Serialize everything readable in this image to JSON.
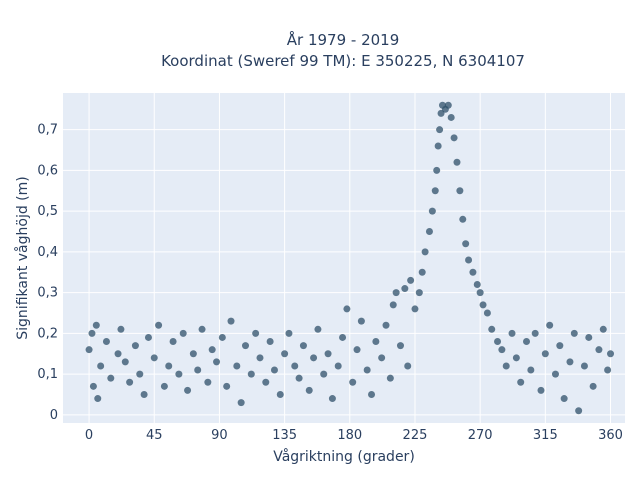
{
  "chart_data": {
    "type": "scatter",
    "title": "År 1979 - 2019",
    "subtitle": "Koordinat (Sweref 99 TM): E 350225, N 6304107",
    "xlabel": "Vågriktning (grader)",
    "ylabel": "Signifikant våghöjd (m)",
    "xlim": [
      -18,
      370
    ],
    "ylim": [
      -0.02,
      0.79
    ],
    "x_ticks": [
      0,
      45,
      90,
      135,
      180,
      225,
      270,
      315,
      360
    ],
    "y_ticks": [
      0,
      0.1,
      0.2,
      0.3,
      0.4,
      0.5,
      0.6,
      0.7
    ],
    "y_tick_labels": [
      "0",
      "0,1",
      "0,2",
      "0,3",
      "0,4",
      "0,5",
      "0,6",
      "0,7"
    ],
    "grid": true,
    "legend": "none",
    "colors": {
      "marker": "#2f5069",
      "plot_bg": "#e5ecf6",
      "grid": "#ffffff"
    },
    "series": [
      {
        "points": [
          [
            0,
            0.16
          ],
          [
            2,
            0.2
          ],
          [
            5,
            0.22
          ],
          [
            6,
            0.04
          ],
          [
            3,
            0.07
          ],
          [
            8,
            0.12
          ],
          [
            12,
            0.18
          ],
          [
            15,
            0.09
          ],
          [
            20,
            0.15
          ],
          [
            22,
            0.21
          ],
          [
            25,
            0.13
          ],
          [
            28,
            0.08
          ],
          [
            32,
            0.17
          ],
          [
            35,
            0.1
          ],
          [
            38,
            0.05
          ],
          [
            41,
            0.19
          ],
          [
            45,
            0.14
          ],
          [
            48,
            0.22
          ],
          [
            52,
            0.07
          ],
          [
            55,
            0.12
          ],
          [
            58,
            0.18
          ],
          [
            62,
            0.1
          ],
          [
            65,
            0.2
          ],
          [
            68,
            0.06
          ],
          [
            72,
            0.15
          ],
          [
            75,
            0.11
          ],
          [
            78,
            0.21
          ],
          [
            82,
            0.08
          ],
          [
            85,
            0.16
          ],
          [
            88,
            0.13
          ],
          [
            92,
            0.19
          ],
          [
            95,
            0.07
          ],
          [
            98,
            0.23
          ],
          [
            102,
            0.12
          ],
          [
            105,
            0.03
          ],
          [
            108,
            0.17
          ],
          [
            112,
            0.1
          ],
          [
            115,
            0.2
          ],
          [
            118,
            0.14
          ],
          [
            122,
            0.08
          ],
          [
            125,
            0.18
          ],
          [
            128,
            0.11
          ],
          [
            132,
            0.05
          ],
          [
            135,
            0.15
          ],
          [
            138,
            0.2
          ],
          [
            142,
            0.12
          ],
          [
            145,
            0.09
          ],
          [
            148,
            0.17
          ],
          [
            152,
            0.06
          ],
          [
            155,
            0.14
          ],
          [
            158,
            0.21
          ],
          [
            162,
            0.1
          ],
          [
            165,
            0.15
          ],
          [
            168,
            0.04
          ],
          [
            172,
            0.12
          ],
          [
            175,
            0.19
          ],
          [
            178,
            0.26
          ],
          [
            182,
            0.08
          ],
          [
            185,
            0.16
          ],
          [
            188,
            0.23
          ],
          [
            192,
            0.11
          ],
          [
            195,
            0.05
          ],
          [
            198,
            0.18
          ],
          [
            202,
            0.14
          ],
          [
            205,
            0.22
          ],
          [
            208,
            0.09
          ],
          [
            210,
            0.27
          ],
          [
            212,
            0.3
          ],
          [
            215,
            0.17
          ],
          [
            218,
            0.31
          ],
          [
            220,
            0.12
          ],
          [
            222,
            0.33
          ],
          [
            225,
            0.26
          ],
          [
            228,
            0.3
          ],
          [
            230,
            0.35
          ],
          [
            232,
            0.4
          ],
          [
            235,
            0.45
          ],
          [
            237,
            0.5
          ],
          [
            239,
            0.55
          ],
          [
            240,
            0.6
          ],
          [
            241,
            0.66
          ],
          [
            242,
            0.7
          ],
          [
            243,
            0.74
          ],
          [
            244,
            0.76
          ],
          [
            246,
            0.75
          ],
          [
            248,
            0.76
          ],
          [
            250,
            0.73
          ],
          [
            252,
            0.68
          ],
          [
            254,
            0.62
          ],
          [
            256,
            0.55
          ],
          [
            258,
            0.48
          ],
          [
            260,
            0.42
          ],
          [
            262,
            0.38
          ],
          [
            265,
            0.35
          ],
          [
            268,
            0.32
          ],
          [
            270,
            0.3
          ],
          [
            272,
            0.27
          ],
          [
            275,
            0.25
          ],
          [
            278,
            0.21
          ],
          [
            282,
            0.18
          ],
          [
            285,
            0.16
          ],
          [
            288,
            0.12
          ],
          [
            292,
            0.2
          ],
          [
            295,
            0.14
          ],
          [
            298,
            0.08
          ],
          [
            302,
            0.18
          ],
          [
            305,
            0.11
          ],
          [
            308,
            0.2
          ],
          [
            312,
            0.06
          ],
          [
            315,
            0.15
          ],
          [
            318,
            0.22
          ],
          [
            322,
            0.1
          ],
          [
            325,
            0.17
          ],
          [
            328,
            0.04
          ],
          [
            332,
            0.13
          ],
          [
            335,
            0.2
          ],
          [
            338,
            0.01
          ],
          [
            342,
            0.12
          ],
          [
            345,
            0.19
          ],
          [
            348,
            0.07
          ],
          [
            352,
            0.16
          ],
          [
            355,
            0.21
          ],
          [
            358,
            0.11
          ],
          [
            360,
            0.15
          ]
        ]
      }
    ]
  }
}
